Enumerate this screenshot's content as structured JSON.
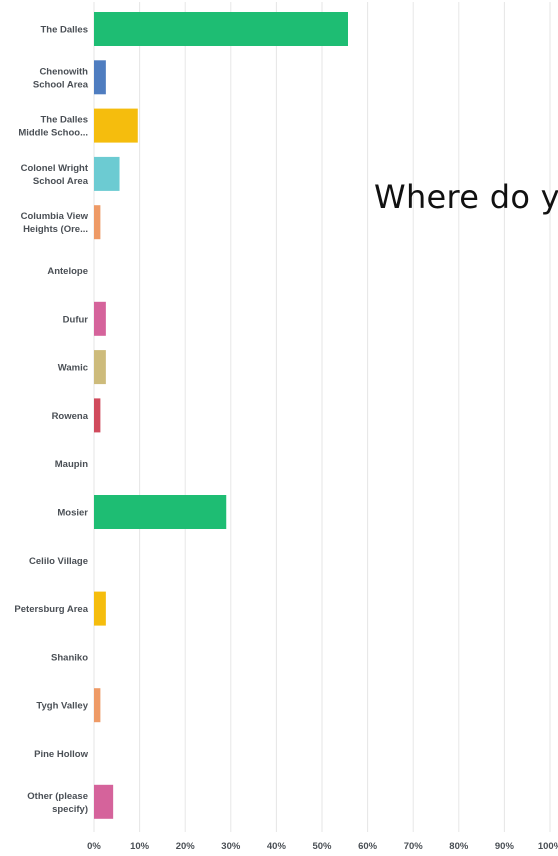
{
  "overlay_title": "Where do y",
  "chart_data": {
    "type": "bar",
    "orientation": "horizontal",
    "xlim": [
      0,
      100
    ],
    "x_ticks": [
      "0%",
      "10%",
      "20%",
      "30%",
      "40%",
      "50%",
      "60%",
      "70%",
      "80%",
      "90%",
      "100%"
    ],
    "grid": true,
    "categories": [
      [
        "The Dalles"
      ],
      [
        "Chenowith",
        "School Area"
      ],
      [
        "The Dalles",
        "Middle Schoo..."
      ],
      [
        "Colonel Wright",
        "School Area"
      ],
      [
        "Columbia View",
        "Heights (Ore..."
      ],
      [
        "Antelope"
      ],
      [
        "Dufur"
      ],
      [
        "Wamic"
      ],
      [
        "Rowena"
      ],
      [
        "Maupin"
      ],
      [
        "Mosier"
      ],
      [
        "Celilo Village"
      ],
      [
        "Petersburg Area"
      ],
      [
        "Shaniko"
      ],
      [
        "Tygh Valley"
      ],
      [
        "Pine Hollow"
      ],
      [
        "Other (please",
        "specify)"
      ]
    ],
    "values": [
      55.7,
      2.6,
      9.6,
      5.6,
      1.4,
      0,
      2.6,
      2.6,
      1.4,
      0,
      29.0,
      0,
      2.6,
      0,
      1.4,
      0,
      4.2
    ],
    "colors": [
      "#1ebd73",
      "#4f7dc0",
      "#f5bd0d",
      "#6ccbd2",
      "#ee9a66",
      "#cccccc",
      "#d5639b",
      "#cdbb7b",
      "#d04a5c",
      "#cccccc",
      "#1ebd73",
      "#cccccc",
      "#f5bd0d",
      "#cccccc",
      "#ee9a66",
      "#cccccc",
      "#d5639b"
    ]
  }
}
